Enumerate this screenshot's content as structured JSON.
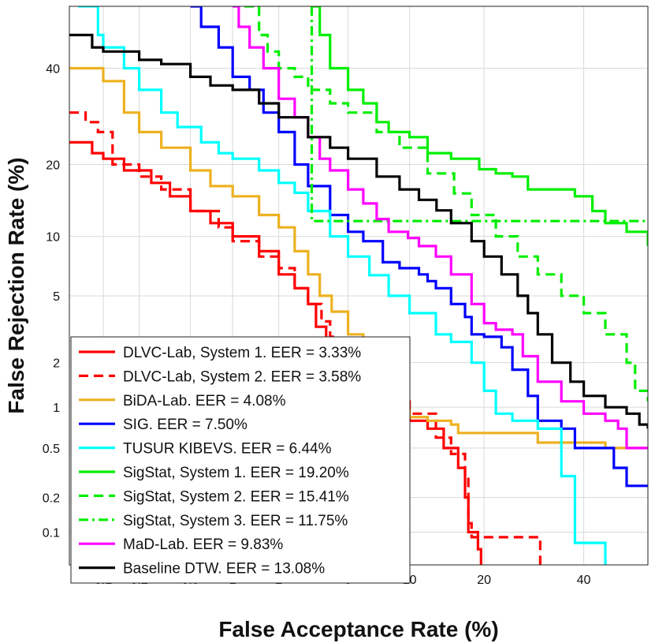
{
  "chart_data": {
    "type": "line",
    "title": "",
    "xlabel": "False Acceptance Rate (%)",
    "ylabel": "False Rejection Rate (%)",
    "xscale": "probit",
    "yscale": "probit",
    "xlim": [
      0.05,
      55
    ],
    "ylim": [
      0.05,
      55
    ],
    "grid": true,
    "legend_position": "bottom-left",
    "x_ticks": [
      0.1,
      0.2,
      0.5,
      1,
      2,
      5,
      10,
      20,
      40
    ],
    "x_tick_labels": [
      "0.1",
      "0.2",
      "0.5",
      "1",
      "2",
      "5",
      "10",
      "20",
      "40"
    ],
    "y_ticks": [
      0.1,
      0.2,
      0.5,
      1,
      2,
      5,
      10,
      20,
      40
    ],
    "y_tick_labels": [
      "0.1",
      "0.2",
      "0.5",
      "1",
      "2",
      "5",
      "10",
      "20",
      "40"
    ],
    "series": [
      {
        "name": "DLVC-Lab, System 1. EER = 3.33%",
        "color": "#ff0000",
        "style": "solid",
        "points": [
          [
            0.05,
            24
          ],
          [
            0.08,
            22
          ],
          [
            0.1,
            21
          ],
          [
            0.15,
            19
          ],
          [
            0.25,
            17
          ],
          [
            0.35,
            15
          ],
          [
            0.5,
            13
          ],
          [
            0.7,
            11.5
          ],
          [
            1,
            10
          ],
          [
            1.5,
            8.5
          ],
          [
            2,
            6.5
          ],
          [
            2.5,
            5.5
          ],
          [
            3,
            4.5
          ],
          [
            3.33,
            3.33
          ],
          [
            3.8,
            2.8
          ],
          [
            4.2,
            2.4
          ],
          [
            5,
            1.9
          ],
          [
            6,
            1.6
          ],
          [
            7,
            1.3
          ],
          [
            9,
            1.1
          ],
          [
            10,
            0.8
          ],
          [
            12,
            0.7
          ],
          [
            14,
            0.5
          ],
          [
            16,
            0.35
          ],
          [
            17,
            0.2
          ],
          [
            17.5,
            0.1
          ],
          [
            19,
            0.07
          ],
          [
            19.5,
            0.05
          ]
        ]
      },
      {
        "name": "DLVC-Lab, System 2. EER = 3.58%",
        "color": "#ff0000",
        "style": "dashed",
        "points": [
          [
            0.05,
            30
          ],
          [
            0.07,
            28
          ],
          [
            0.09,
            26
          ],
          [
            0.12,
            20
          ],
          [
            0.2,
            18
          ],
          [
            0.3,
            16
          ],
          [
            0.5,
            13
          ],
          [
            0.8,
            11
          ],
          [
            1,
            9.5
          ],
          [
            1.5,
            8
          ],
          [
            2,
            7
          ],
          [
            2.5,
            5.5
          ],
          [
            3,
            4.5
          ],
          [
            3.58,
            3.58
          ],
          [
            4,
            2.9
          ],
          [
            4.5,
            2.4
          ],
          [
            5,
            2
          ],
          [
            6,
            1.6
          ],
          [
            7,
            1.4
          ],
          [
            9,
            1.1
          ],
          [
            10,
            0.9
          ],
          [
            13,
            0.6
          ],
          [
            15,
            0.45
          ],
          [
            17,
            0.3
          ],
          [
            17.5,
            0.12
          ],
          [
            18,
            0.09
          ],
          [
            30,
            0.09
          ],
          [
            30.5,
            0.05
          ]
        ]
      },
      {
        "name": "BiDA-Lab. EER = 4.08%",
        "color": "#edb120",
        "style": "solid",
        "points": [
          [
            0.05,
            40
          ],
          [
            0.1,
            37
          ],
          [
            0.15,
            30
          ],
          [
            0.2,
            26
          ],
          [
            0.3,
            23
          ],
          [
            0.5,
            19
          ],
          [
            0.7,
            16.5
          ],
          [
            1,
            15
          ],
          [
            1.5,
            12.5
          ],
          [
            2,
            11
          ],
          [
            2.5,
            8.5
          ],
          [
            3,
            6.5
          ],
          [
            3.5,
            5
          ],
          [
            4.08,
            4.08
          ],
          [
            5,
            3
          ],
          [
            6,
            2
          ],
          [
            7,
            1.5
          ],
          [
            8,
            1.2
          ],
          [
            9,
            0.95
          ],
          [
            10,
            0.85
          ],
          [
            12,
            0.8
          ],
          [
            15,
            0.75
          ],
          [
            16,
            0.65
          ],
          [
            25,
            0.65
          ],
          [
            30,
            0.55
          ],
          [
            40,
            0.55
          ],
          [
            45,
            0.5
          ],
          [
            55,
            0.5
          ]
        ]
      },
      {
        "name": "SIG. EER = 7.50%",
        "color": "#0000ff",
        "style": "solid",
        "points": [
          [
            0.5,
            55
          ],
          [
            0.6,
            50
          ],
          [
            0.8,
            45
          ],
          [
            1,
            38
          ],
          [
            1.3,
            35
          ],
          [
            1.6,
            30
          ],
          [
            2,
            26
          ],
          [
            2.5,
            20
          ],
          [
            3,
            16.5
          ],
          [
            4,
            12.5
          ],
          [
            5,
            10.5
          ],
          [
            6,
            9.5
          ],
          [
            7.5,
            7.5
          ],
          [
            9,
            7
          ],
          [
            11,
            6.5
          ],
          [
            12,
            6
          ],
          [
            13,
            5.5
          ],
          [
            15,
            4.5
          ],
          [
            17,
            3.8
          ],
          [
            18,
            3
          ],
          [
            20,
            2.9
          ],
          [
            23,
            2.5
          ],
          [
            25,
            1.8
          ],
          [
            28,
            1.2
          ],
          [
            30,
            0.8
          ],
          [
            35,
            0.7
          ],
          [
            38,
            0.5
          ],
          [
            45,
            0.5
          ],
          [
            47,
            0.35
          ],
          [
            50,
            0.25
          ],
          [
            55,
            0.25
          ]
        ]
      },
      {
        "name": "TUSUR KIBEVS. EER = 6.44%",
        "color": "#00ffff",
        "style": "solid",
        "points": [
          [
            0.06,
            55
          ],
          [
            0.08,
            55
          ],
          [
            0.09,
            48
          ],
          [
            0.1,
            45
          ],
          [
            0.15,
            40
          ],
          [
            0.2,
            35
          ],
          [
            0.3,
            30
          ],
          [
            0.4,
            27
          ],
          [
            0.6,
            24
          ],
          [
            0.8,
            22
          ],
          [
            1,
            21
          ],
          [
            1.5,
            19
          ],
          [
            2,
            17
          ],
          [
            2.5,
            15.5
          ],
          [
            3,
            13
          ],
          [
            4,
            10
          ],
          [
            5,
            8
          ],
          [
            6.44,
            6.44
          ],
          [
            8,
            5
          ],
          [
            10,
            4
          ],
          [
            13,
            3
          ],
          [
            15,
            2.7
          ],
          [
            18,
            2
          ],
          [
            20,
            1.3
          ],
          [
            22,
            0.9
          ],
          [
            25,
            0.8
          ],
          [
            30,
            0.7
          ],
          [
            35,
            0.3
          ],
          [
            38,
            0.08
          ],
          [
            44,
            0.08
          ],
          [
            45,
            0.05
          ]
        ]
      },
      {
        "name": "SigStat, System 1. EER = 19.20%",
        "color": "#00ee00",
        "style": "solid",
        "points": [
          [
            3.2,
            55
          ],
          [
            3.5,
            48
          ],
          [
            4,
            40
          ],
          [
            5,
            35
          ],
          [
            6,
            32
          ],
          [
            7,
            28
          ],
          [
            8,
            26
          ],
          [
            10,
            25
          ],
          [
            12,
            22
          ],
          [
            15,
            21
          ],
          [
            19.2,
            19.2
          ],
          [
            22,
            18.5
          ],
          [
            25,
            18
          ],
          [
            28,
            16
          ],
          [
            35,
            16
          ],
          [
            38,
            15
          ],
          [
            42,
            13
          ],
          [
            45,
            11.5
          ],
          [
            50,
            10.5
          ],
          [
            55,
            9
          ]
        ]
      },
      {
        "name": "SigStat, System 2. EER = 15.41%",
        "color": "#00ee00",
        "style": "dashed",
        "points": [
          [
            1.2,
            55
          ],
          [
            1.5,
            48
          ],
          [
            1.7,
            44
          ],
          [
            2,
            40
          ],
          [
            2.5,
            38
          ],
          [
            3,
            35
          ],
          [
            4,
            32
          ],
          [
            5,
            30
          ],
          [
            7,
            26
          ],
          [
            9,
            23
          ],
          [
            12,
            18.5
          ],
          [
            15.41,
            15.41
          ],
          [
            18,
            12.5
          ],
          [
            22,
            10
          ],
          [
            26,
            8
          ],
          [
            30,
            6.5
          ],
          [
            35,
            5
          ],
          [
            40,
            4
          ],
          [
            45,
            3
          ],
          [
            50,
            2
          ],
          [
            52,
            1.3
          ],
          [
            55,
            1.1
          ]
        ]
      },
      {
        "name": "SigStat, System 3. EER = 11.75%",
        "color": "#00ee00",
        "style": "dashdot",
        "points": [
          [
            3.15,
            55
          ],
          [
            3.15,
            11.75
          ],
          [
            11.75,
            11.75
          ],
          [
            55,
            11.75
          ]
        ]
      },
      {
        "name": "MaD-Lab. EER = 9.83%",
        "color": "#ff00ff",
        "style": "solid",
        "points": [
          [
            1,
            55
          ],
          [
            1.1,
            50
          ],
          [
            1.3,
            45
          ],
          [
            1.6,
            40
          ],
          [
            2,
            33
          ],
          [
            2.5,
            29
          ],
          [
            3,
            25
          ],
          [
            3.5,
            21
          ],
          [
            4,
            19
          ],
          [
            5,
            16
          ],
          [
            6,
            14
          ],
          [
            7,
            12
          ],
          [
            8,
            10.5
          ],
          [
            9.83,
            9.83
          ],
          [
            11,
            9
          ],
          [
            13,
            8
          ],
          [
            15,
            6.5
          ],
          [
            18,
            4.5
          ],
          [
            20,
            3.5
          ],
          [
            22,
            3.2
          ],
          [
            25,
            3
          ],
          [
            27,
            2.2
          ],
          [
            30,
            1.5
          ],
          [
            35,
            1.1
          ],
          [
            40,
            0.9
          ],
          [
            45,
            0.8
          ],
          [
            48,
            0.7
          ],
          [
            50,
            0.5
          ],
          [
            55,
            0.5
          ]
        ]
      },
      {
        "name": "Baseline DTW. EER = 13.08%",
        "color": "#000000",
        "style": "solid",
        "points": [
          [
            0.05,
            48
          ],
          [
            0.08,
            45
          ],
          [
            0.1,
            44
          ],
          [
            0.2,
            42
          ],
          [
            0.3,
            41
          ],
          [
            0.5,
            38
          ],
          [
            0.7,
            36
          ],
          [
            1,
            35
          ],
          [
            1.5,
            32
          ],
          [
            2,
            29
          ],
          [
            3,
            25
          ],
          [
            4,
            23
          ],
          [
            5,
            21
          ],
          [
            7,
            18
          ],
          [
            9,
            16
          ],
          [
            11,
            14.5
          ],
          [
            13.08,
            13.08
          ],
          [
            15,
            11.5
          ],
          [
            18,
            9.5
          ],
          [
            20,
            8
          ],
          [
            23,
            6.5
          ],
          [
            26,
            5
          ],
          [
            28,
            4
          ],
          [
            30,
            3
          ],
          [
            33,
            2
          ],
          [
            37,
            1.5
          ],
          [
            40,
            1.2
          ],
          [
            45,
            1
          ],
          [
            50,
            0.9
          ],
          [
            53,
            0.75
          ],
          [
            55,
            0.7
          ]
        ]
      }
    ]
  }
}
